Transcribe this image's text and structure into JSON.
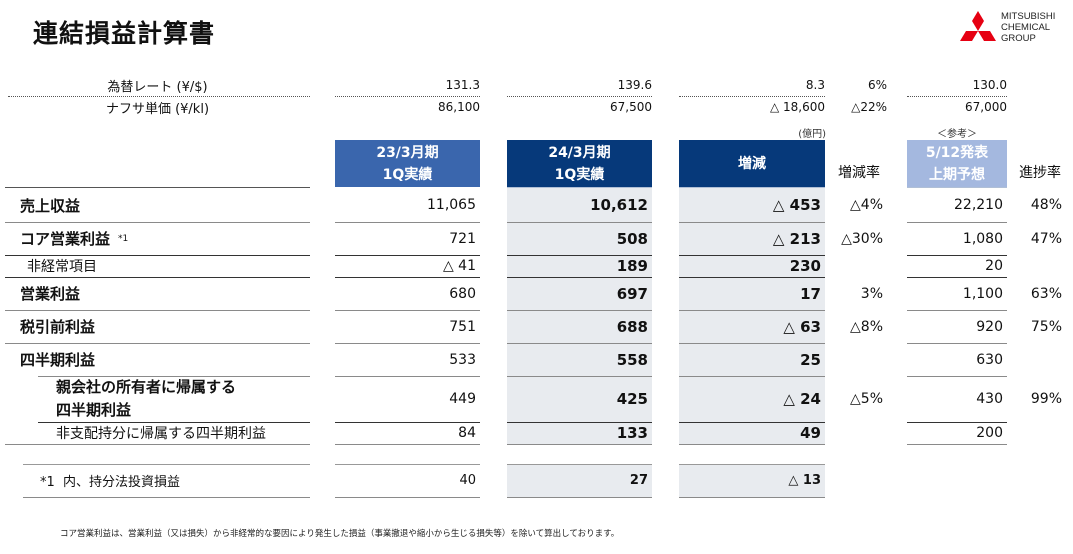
{
  "title": "連結損益計算書",
  "logo": {
    "lines": [
      "MITSUBISHI",
      "CHEMICAL",
      "GROUP"
    ],
    "color": "#e60012"
  },
  "fx": {
    "rows": [
      {
        "label": "為替レート (¥/$)",
        "prev": "131.3",
        "curr": "139.6",
        "diff": "8.3",
        "rate": "6%",
        "forecast": "130.0"
      },
      {
        "label": "ナフサ単価 (¥/kl)",
        "prev": "86,100",
        "curr": "67,500",
        "diff": "△ 18,600",
        "rate": "△22%",
        "forecast": "67,000"
      }
    ]
  },
  "unit_note": "(億円)",
  "reference_note": "＜参考＞",
  "headers": {
    "prev": [
      "23/3月期",
      "1Q実績"
    ],
    "curr": [
      "24/3月期",
      "1Q実績"
    ],
    "diff": "増減",
    "rate": "増減率",
    "forecast": [
      "5/12発表",
      "上期予想"
    ],
    "progress": "進捗率"
  },
  "colors": {
    "prev_header": "#3a66ad",
    "curr_header": "#06397a",
    "diff_header": "#06397a",
    "forecast_header": "#a4b8df",
    "grey_cell": "#e8ebef"
  },
  "rows": [
    {
      "label": "売上収益",
      "note": "",
      "prev": "11,065",
      "curr": "10,612",
      "diff": "△ 453",
      "rate": "△4%",
      "forecast": "22,210",
      "progress": "48%"
    },
    {
      "label": "コア営業利益",
      "note": "*1",
      "prev": "721",
      "curr": "508",
      "diff": "△ 213",
      "rate": "△30%",
      "forecast": "1,080",
      "progress": "47%"
    },
    {
      "label": "非経常項目",
      "note": "",
      "prev": "△ 41",
      "curr": "189",
      "diff": "230",
      "rate": "",
      "forecast": "20",
      "progress": ""
    },
    {
      "label": "営業利益",
      "note": "",
      "prev": "680",
      "curr": "697",
      "diff": "17",
      "rate": "3%",
      "forecast": "1,100",
      "progress": "63%"
    },
    {
      "label": "税引前利益",
      "note": "",
      "prev": "751",
      "curr": "688",
      "diff": "△ 63",
      "rate": "△8%",
      "forecast": "920",
      "progress": "75%"
    },
    {
      "label": "四半期利益",
      "note": "",
      "prev": "533",
      "curr": "558",
      "diff": "25",
      "rate": "",
      "forecast": "630",
      "progress": ""
    },
    {
      "label": [
        "親会社の所有者に帰属する",
        "四半期利益"
      ],
      "note": "",
      "prev": "449",
      "curr": "425",
      "diff": "△ 24",
      "rate": "△5%",
      "forecast": "430",
      "progress": "99%"
    },
    {
      "label": "非支配持分に帰属する四半期利益",
      "note": "",
      "prev": "84",
      "curr": "133",
      "diff": "49",
      "rate": "",
      "forecast": "200",
      "progress": ""
    }
  ],
  "equity_row": {
    "label": "*1  内、持分法投資損益",
    "prev": "40",
    "curr": "27",
    "diff": "△ 13"
  },
  "footnote": "コア営業利益は、営業利益（又は損失）から非経常的な要因により発生した損益（事業撤退や縮小から生じる損失等）を除いて算出しております。"
}
